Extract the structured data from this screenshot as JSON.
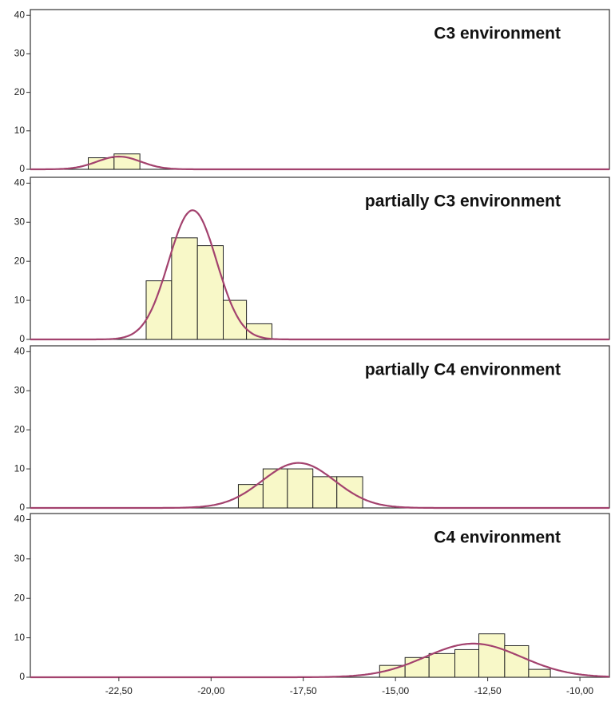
{
  "chart_data": [
    {
      "type": "histogram",
      "title": "C3  environment",
      "bins": [
        -23.33,
        -22.63,
        -21.93
      ],
      "values": [
        3,
        4
      ],
      "color": "#f8f8c8",
      "curve": {
        "mean": -22.5,
        "sd": 0.59,
        "color": "#a3426e"
      },
      "xlim": [
        -24.9,
        -9.2
      ],
      "ylim": [
        0,
        41.5
      ],
      "yticks": [
        0,
        10,
        20,
        30,
        40
      ]
    },
    {
      "type": "histogram",
      "title": "partially C3  environment",
      "bins": [
        -21.76,
        -21.07,
        -20.37,
        -19.67,
        -19.04,
        -18.35
      ],
      "values": [
        15,
        26,
        24,
        10,
        4
      ],
      "color": "#f8f8c8",
      "curve": {
        "mean": -20.5,
        "sd": 0.65,
        "color": "#a3426e"
      },
      "xlim": [
        -24.9,
        -9.2
      ],
      "ylim": [
        0,
        41.5
      ],
      "yticks": [
        0,
        10,
        20,
        30,
        40
      ]
    },
    {
      "type": "histogram",
      "title": "partially  C4 environment",
      "bins": [
        -19.26,
        -18.59,
        -17.93,
        -17.24,
        -16.59,
        -15.89
      ],
      "values": [
        6,
        10,
        10,
        8,
        8
      ],
      "color": "#f8f8c8",
      "curve": {
        "mean": -17.63,
        "sd": 0.98,
        "color": "#a3426e"
      },
      "xlim": [
        -24.9,
        -9.2
      ],
      "ylim": [
        0,
        41.5
      ],
      "yticks": [
        0,
        10,
        20,
        30,
        40
      ]
    },
    {
      "type": "histogram",
      "title": "C4 environment",
      "bins": [
        -15.43,
        -14.74,
        -14.09,
        -13.39,
        -12.74,
        -12.04,
        -11.39,
        -10.8
      ],
      "values": [
        3,
        5,
        6,
        7,
        11,
        8,
        2
      ],
      "color": "#f8f8c8",
      "curve": {
        "mean": -12.89,
        "sd": 1.3,
        "color": "#a3426e"
      },
      "xlim": [
        -24.9,
        -9.2
      ],
      "ylim": [
        0,
        41.5
      ],
      "yticks": [
        0,
        10,
        20,
        30,
        40
      ],
      "xticks": [
        {
          "value": -22.5,
          "label": "-22,50"
        },
        {
          "value": -20,
          "label": "-20,00"
        },
        {
          "value": -17.5,
          "label": "-17,50"
        },
        {
          "value": -15,
          "label": "-15,00"
        },
        {
          "value": -12.5,
          "label": "-12,50"
        },
        {
          "value": -10,
          "label": "-10,00"
        }
      ]
    }
  ]
}
